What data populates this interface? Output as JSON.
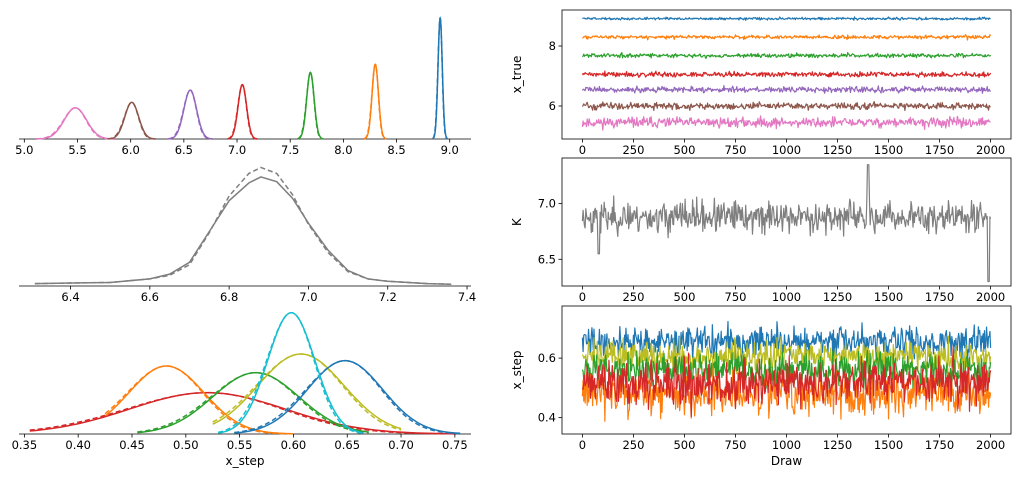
{
  "colors": {
    "blue": "#1f77b4",
    "orange": "#ff7f0e",
    "green": "#2ca02c",
    "red": "#d62728",
    "purple": "#9467bd",
    "brown": "#8c564b",
    "pink": "#e377c2",
    "gray": "#7f7f7f",
    "olive": "#bcbd22",
    "cyan": "#17becf"
  },
  "chart_data": [
    {
      "type": "area",
      "panel": "x_true-density",
      "xlim": [
        4.95,
        9.2
      ],
      "xticks": [
        "5.0",
        "5.5",
        "6.0",
        "6.5",
        "7.0",
        "7.5",
        "8.0",
        "8.5",
        "9.0"
      ],
      "xtick_values": [
        5.0,
        5.5,
        6.0,
        6.5,
        7.0,
        7.5,
        8.0,
        8.5,
        9.0
      ],
      "series": [
        {
          "color": "pink",
          "mean": 5.48,
          "sd": 0.105,
          "peak": 0.23
        },
        {
          "color": "brown",
          "mean": 6.01,
          "sd": 0.065,
          "peak": 0.27
        },
        {
          "color": "purple",
          "mean": 6.56,
          "sd": 0.06,
          "peak": 0.36
        },
        {
          "color": "red",
          "mean": 7.05,
          "sd": 0.04,
          "peak": 0.4
        },
        {
          "color": "green",
          "mean": 7.69,
          "sd": 0.035,
          "peak": 0.49
        },
        {
          "color": "orange",
          "mean": 8.3,
          "sd": 0.03,
          "peak": 0.55
        },
        {
          "color": "blue",
          "mean": 8.91,
          "sd": 0.02,
          "peak": 0.89
        }
      ]
    },
    {
      "type": "line",
      "panel": "x_true-trace",
      "ylabel": "x_true",
      "xlim": [
        -100,
        2100
      ],
      "ylim": [
        4.9,
        9.2
      ],
      "xticks": [
        "0",
        "250",
        "500",
        "750",
        "1000",
        "1250",
        "1500",
        "1750",
        "2000"
      ],
      "xtick_values": [
        0,
        250,
        500,
        750,
        1000,
        1250,
        1500,
        1750,
        2000
      ],
      "yticks": [
        "6",
        "8"
      ],
      "ytick_values": [
        6,
        8
      ],
      "series": [
        {
          "color": "pink",
          "center": 5.45,
          "noise": 0.12
        },
        {
          "color": "brown",
          "center": 6.0,
          "noise": 0.08
        },
        {
          "color": "purple",
          "center": 6.55,
          "noise": 0.07
        },
        {
          "color": "red",
          "center": 7.05,
          "noise": 0.06
        },
        {
          "color": "green",
          "center": 7.68,
          "noise": 0.05
        },
        {
          "color": "orange",
          "center": 8.3,
          "noise": 0.045
        },
        {
          "color": "blue",
          "center": 8.91,
          "noise": 0.03
        }
      ]
    },
    {
      "type": "line",
      "panel": "K-density",
      "xlim": [
        6.27,
        7.41
      ],
      "xticks": [
        "6.4",
        "6.6",
        "6.8",
        "7.0",
        "7.2",
        "7.4"
      ],
      "xtick_values": [
        6.4,
        6.6,
        6.8,
        7.0,
        7.2,
        7.4
      ],
      "series": [
        {
          "color": "gray",
          "style": "solid",
          "points": [
            [
              6.31,
              0.02
            ],
            [
              6.4,
              0.025
            ],
            [
              6.5,
              0.03
            ],
            [
              6.6,
              0.06
            ],
            [
              6.65,
              0.1
            ],
            [
              6.7,
              0.2
            ],
            [
              6.75,
              0.46
            ],
            [
              6.8,
              0.72
            ],
            [
              6.85,
              0.87
            ],
            [
              6.88,
              0.92
            ],
            [
              6.92,
              0.88
            ],
            [
              6.96,
              0.74
            ],
            [
              7.0,
              0.53
            ],
            [
              7.05,
              0.3
            ],
            [
              7.1,
              0.13
            ],
            [
              7.15,
              0.06
            ],
            [
              7.2,
              0.04
            ],
            [
              7.3,
              0.02
            ],
            [
              7.36,
              0.015
            ]
          ]
        },
        {
          "color": "gray",
          "style": "dashed",
          "points": [
            [
              6.31,
              0.02
            ],
            [
              6.4,
              0.025
            ],
            [
              6.5,
              0.03
            ],
            [
              6.6,
              0.06
            ],
            [
              6.65,
              0.09
            ],
            [
              6.7,
              0.18
            ],
            [
              6.75,
              0.45
            ],
            [
              6.8,
              0.76
            ],
            [
              6.85,
              0.95
            ],
            [
              6.88,
              1.0
            ],
            [
              6.92,
              0.95
            ],
            [
              6.96,
              0.77
            ],
            [
              7.0,
              0.52
            ],
            [
              7.05,
              0.28
            ],
            [
              7.1,
              0.12
            ],
            [
              7.15,
              0.06
            ],
            [
              7.2,
              0.04
            ],
            [
              7.3,
              0.02
            ],
            [
              7.36,
              0.015
            ]
          ]
        }
      ]
    },
    {
      "type": "line",
      "panel": "K-trace",
      "ylabel": "K",
      "xlim": [
        -100,
        2100
      ],
      "ylim": [
        6.26,
        7.41
      ],
      "xticks": [
        "0",
        "250",
        "500",
        "750",
        "1000",
        "1250",
        "1500",
        "1750",
        "2000"
      ],
      "xtick_values": [
        0,
        250,
        500,
        750,
        1000,
        1250,
        1500,
        1750,
        2000
      ],
      "yticks": [
        "6.5",
        "7.0"
      ],
      "ytick_values": [
        6.5,
        7.0
      ],
      "series": [
        {
          "color": "gray",
          "center": 6.88,
          "noise": 0.1,
          "spikes": [
            [
              1400,
              7.35
            ],
            [
              80,
              6.55
            ],
            [
              1990,
              6.3
            ]
          ]
        }
      ]
    },
    {
      "type": "line",
      "panel": "x_step-density",
      "xlabel": "x_step",
      "xlim": [
        0.345,
        0.765
      ],
      "xticks": [
        "0.35",
        "0.40",
        "0.45",
        "0.50",
        "0.55",
        "0.60",
        "0.65",
        "0.70",
        "0.75"
      ],
      "xtick_values": [
        0.35,
        0.4,
        0.45,
        0.5,
        0.55,
        0.6,
        0.65,
        0.7,
        0.75
      ],
      "series": [
        {
          "color": "red",
          "mean": 0.52,
          "sd": 0.072,
          "peak": 0.31,
          "range": [
            0.355,
            0.75
          ]
        },
        {
          "color": "orange",
          "mean": 0.482,
          "sd": 0.035,
          "peak": 0.51,
          "range": [
            0.425,
            0.6
          ]
        },
        {
          "color": "green",
          "mean": 0.565,
          "sd": 0.04,
          "peak": 0.46,
          "range": [
            0.455,
            0.67
          ]
        },
        {
          "color": "olive",
          "mean": 0.607,
          "sd": 0.04,
          "peak": 0.6,
          "range": [
            0.525,
            0.7
          ]
        },
        {
          "color": "blue",
          "mean": 0.648,
          "sd": 0.035,
          "peak": 0.55,
          "range": [
            0.545,
            0.755
          ]
        },
        {
          "color": "cyan",
          "mean": 0.598,
          "sd": 0.022,
          "peak": 0.91,
          "range": [
            0.53,
            0.665
          ]
        }
      ]
    },
    {
      "type": "line",
      "panel": "x_step-trace",
      "ylabel": "x_step",
      "xlabel": "Draw",
      "xlim": [
        -100,
        2100
      ],
      "ylim": [
        0.345,
        0.775
      ],
      "xticks": [
        "0",
        "250",
        "500",
        "750",
        "1000",
        "1250",
        "1500",
        "1750",
        "2000"
      ],
      "xtick_values": [
        0,
        250,
        500,
        750,
        1000,
        1250,
        1500,
        1750,
        2000
      ],
      "yticks": [
        "0.4",
        "0.6"
      ],
      "ytick_values": [
        0.4,
        0.6
      ],
      "series": [
        {
          "color": "blue",
          "center": 0.655,
          "noise": 0.035
        },
        {
          "color": "olive",
          "center": 0.605,
          "noise": 0.035
        },
        {
          "color": "green",
          "center": 0.56,
          "noise": 0.04
        },
        {
          "color": "orange",
          "center": 0.48,
          "noise": 0.05
        },
        {
          "color": "red",
          "center": 0.52,
          "noise": 0.055
        }
      ]
    }
  ]
}
